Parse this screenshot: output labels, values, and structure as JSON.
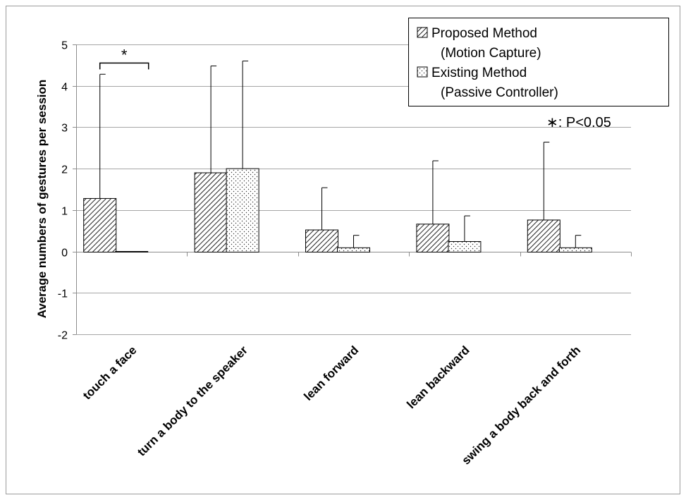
{
  "chart_data": {
    "type": "bar",
    "title": "",
    "xlabel": "",
    "ylabel": "Average numbers of gestures per session",
    "ylim": [
      -2,
      5
    ],
    "yticks": [
      "5",
      "4",
      "3",
      "2",
      "1",
      "0",
      "-1",
      "-2"
    ],
    "grid": true,
    "legend_position": "top-right",
    "categories": [
      "touch a face",
      "turn a body to the speaker",
      "lean forward",
      "lean backward",
      "swing a body back and forth"
    ],
    "series": [
      {
        "name": "Proposed Method",
        "name_line2": "(Motion Capture)",
        "pattern": "diagonal-hatch",
        "values": [
          1.28,
          1.9,
          0.52,
          0.66,
          0.76
        ],
        "error_upper": [
          4.28,
          4.48,
          1.54,
          2.19,
          2.64
        ]
      },
      {
        "name": "Existing Method",
        "name_line2": "(Passive Controller)",
        "pattern": "dots",
        "values": [
          0.0,
          2.0,
          0.09,
          0.24,
          0.09
        ],
        "error_upper": [
          0.0,
          4.6,
          0.39,
          0.86,
          0.39
        ]
      }
    ],
    "annotations": {
      "significance_mark": "*",
      "significance_category": "touch a face",
      "note": "∗: P<0.05"
    }
  }
}
